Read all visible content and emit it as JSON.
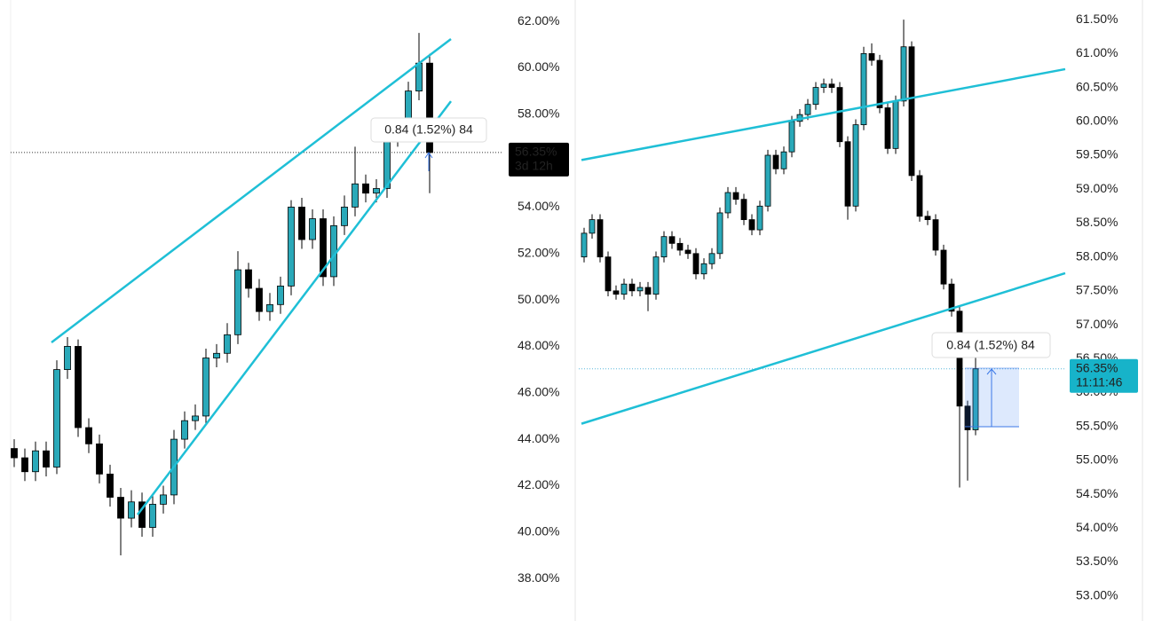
{
  "chart_data": [
    {
      "type": "candlestick",
      "open": [
        43.6,
        43.2,
        42.6,
        43.5,
        42.8,
        47.0,
        48.0,
        44.5,
        43.8,
        42.5,
        41.5,
        40.6,
        41.3,
        40.2,
        41.2,
        41.6,
        44.0,
        44.8,
        45.0,
        47.5,
        47.7,
        48.5,
        51.3,
        50.5,
        49.5,
        49.8,
        50.6,
        54.0,
        52.6,
        53.5,
        51.0,
        53.2,
        54.0,
        55.0,
        54.6,
        54.8,
        57.0,
        57.2,
        59.0,
        60.2
      ],
      "high": [
        44.0,
        43.6,
        43.9,
        43.9,
        47.4,
        48.4,
        48.3,
        44.9,
        44.2,
        42.9,
        41.9,
        41.8,
        41.7,
        41.6,
        42.0,
        44.4,
        45.2,
        45.5,
        47.9,
        48.1,
        49.0,
        52.1,
        51.6,
        50.9,
        50.3,
        51.0,
        54.3,
        54.4,
        53.9,
        53.9,
        53.6,
        54.5,
        56.6,
        55.4,
        55.2,
        57.4,
        57.6,
        59.4,
        61.5,
        60.6
      ],
      "low": [
        42.8,
        42.2,
        42.2,
        42.4,
        42.5,
        46.6,
        44.1,
        43.4,
        42.1,
        41.1,
        39.0,
        40.2,
        39.8,
        39.8,
        40.8,
        41.2,
        43.6,
        44.4,
        44.6,
        47.1,
        47.3,
        48.1,
        50.1,
        49.1,
        49.1,
        49.4,
        50.2,
        52.2,
        52.2,
        50.6,
        50.6,
        52.8,
        53.6,
        54.2,
        54.2,
        54.4,
        56.6,
        56.8,
        58.6,
        54.6
      ],
      "close": [
        43.2,
        42.6,
        43.5,
        42.8,
        47.0,
        48.0,
        44.5,
        43.8,
        42.5,
        41.5,
        40.6,
        41.3,
        40.2,
        41.2,
        41.6,
        44.0,
        44.8,
        45.0,
        47.5,
        47.7,
        48.5,
        51.3,
        50.5,
        49.5,
        49.8,
        50.6,
        54.0,
        52.6,
        53.5,
        51.0,
        53.2,
        54.0,
        55.0,
        54.6,
        54.8,
        57.0,
        57.2,
        59.0,
        60.2,
        56.35
      ],
      "up_color": "#2aa9b9",
      "down_color": "#000000",
      "ylim": [
        36.17,
        62.92
      ],
      "yticks": [
        {
          "value": 38,
          "label": "38.00%"
        },
        {
          "value": 40,
          "label": "40.00%"
        },
        {
          "value": 42,
          "label": "42.00%"
        },
        {
          "value": 44,
          "label": "44.00%"
        },
        {
          "value": 46,
          "label": "46.00%"
        },
        {
          "value": 48,
          "label": "48.00%"
        },
        {
          "value": 50,
          "label": "50.00%"
        },
        {
          "value": 52,
          "label": "52.00%"
        },
        {
          "value": 54,
          "label": "54.00%"
        },
        {
          "value": 56,
          "label": "56.00%"
        },
        {
          "value": 58,
          "label": "58.00%"
        },
        {
          "value": 60,
          "label": "60.00%"
        },
        {
          "value": 62,
          "label": "62.00%"
        }
      ],
      "trendline_color": "#1fbfd6",
      "trendlines": [
        {
          "x": [
            3.5,
            41
          ],
          "y": [
            48.17,
            61.24
          ]
        },
        {
          "x": [
            11.58,
            41
          ],
          "y": [
            40.75,
            58.56
          ]
        }
      ],
      "last_price": {
        "value": 56.35,
        "label": "56.35%",
        "countdown": "3d 12h",
        "color": "#000000",
        "line_color": "#333333"
      },
      "measure_label": "0.84 (1.52%) 84"
    },
    {
      "type": "candlestick",
      "open": [
        58.0,
        58.35,
        58.55,
        58.0,
        57.5,
        57.45,
        57.6,
        57.5,
        57.55,
        57.45,
        58.0,
        58.3,
        58.2,
        58.1,
        58.05,
        57.75,
        57.9,
        58.05,
        58.65,
        58.95,
        58.85,
        58.55,
        58.4,
        58.75,
        59.5,
        59.3,
        59.55,
        60.0,
        60.1,
        60.25,
        60.5,
        60.55,
        60.5,
        59.7,
        58.75,
        59.95,
        61.0,
        60.9,
        60.2,
        59.6,
        60.3,
        61.1,
        59.2,
        58.6,
        58.55,
        58.1,
        57.6,
        57.2,
        55.8,
        55.45
      ],
      "high": [
        58.43,
        58.63,
        58.63,
        58.08,
        57.58,
        57.68,
        57.68,
        57.63,
        57.63,
        58.08,
        58.38,
        58.38,
        58.28,
        58.18,
        58.13,
        57.98,
        58.13,
        58.73,
        59.03,
        59.03,
        58.93,
        58.63,
        58.83,
        59.58,
        59.58,
        59.63,
        60.08,
        60.18,
        60.33,
        60.58,
        60.63,
        60.63,
        60.58,
        59.78,
        60.03,
        61.1,
        61.15,
        60.98,
        60.28,
        60.38,
        61.5,
        61.18,
        59.28,
        58.68,
        58.63,
        58.18,
        57.68,
        57.28,
        55.88,
        56.6
      ],
      "low": [
        57.92,
        58.27,
        57.92,
        57.42,
        57.37,
        57.37,
        57.42,
        57.42,
        57.2,
        57.37,
        57.92,
        58.12,
        58.02,
        57.97,
        57.67,
        57.67,
        57.82,
        57.97,
        58.57,
        58.77,
        58.47,
        58.32,
        58.32,
        58.67,
        59.22,
        59.22,
        59.47,
        59.92,
        60.02,
        60.17,
        60.42,
        60.42,
        59.62,
        58.55,
        58.67,
        59.87,
        60.82,
        60.12,
        59.52,
        59.52,
        60.22,
        59.12,
        58.52,
        58.47,
        58.02,
        57.52,
        57.12,
        54.6,
        54.7,
        55.37
      ],
      "close": [
        58.35,
        58.55,
        58.0,
        57.5,
        57.45,
        57.6,
        57.5,
        57.55,
        57.45,
        58.0,
        58.3,
        58.2,
        58.1,
        58.05,
        57.75,
        57.9,
        58.05,
        58.65,
        58.95,
        58.85,
        58.55,
        58.4,
        58.75,
        59.5,
        59.3,
        59.55,
        60.0,
        60.1,
        60.25,
        60.5,
        60.55,
        60.5,
        59.7,
        58.75,
        59.95,
        61.0,
        60.9,
        60.2,
        59.6,
        60.3,
        61.1,
        59.2,
        58.6,
        58.55,
        58.1,
        57.6,
        57.2,
        55.8,
        55.45,
        56.35
      ],
      "up_color": "#2aa9b9",
      "down_color": "#000000",
      "ylim": [
        52.63,
        61.79
      ],
      "yticks": [
        {
          "value": 53,
          "label": "53.00%"
        },
        {
          "value": 53.5,
          "label": "53.50%"
        },
        {
          "value": 54,
          "label": "54.00%"
        },
        {
          "value": 54.5,
          "label": "54.50%"
        },
        {
          "value": 55,
          "label": "55.00%"
        },
        {
          "value": 55.5,
          "label": "55.50%"
        },
        {
          "value": 56,
          "label": "56.00%"
        },
        {
          "value": 56.5,
          "label": "56.50%"
        },
        {
          "value": 57,
          "label": "57.00%"
        },
        {
          "value": 57.5,
          "label": "57.50%"
        },
        {
          "value": 58,
          "label": "58.00%"
        },
        {
          "value": 58.5,
          "label": "58.50%"
        },
        {
          "value": 59,
          "label": "59.00%"
        },
        {
          "value": 59.5,
          "label": "59.50%"
        },
        {
          "value": 60,
          "label": "60.00%"
        },
        {
          "value": 60.5,
          "label": "60.50%"
        },
        {
          "value": 61,
          "label": "61.00%"
        },
        {
          "value": 61.5,
          "label": "61.50%"
        }
      ],
      "trendline_color": "#1fbfd6",
      "trendlines": [
        {
          "x": [
            -0.33,
            60.22
          ],
          "y": [
            59.43,
            60.77
          ]
        },
        {
          "x": [
            -0.33,
            60.22
          ],
          "y": [
            55.54,
            57.76
          ]
        }
      ],
      "last_price": {
        "value": 56.35,
        "label": "56.35%",
        "countdown": "11:11:46",
        "color": "#17b3c9",
        "line_color": "#5ab8dc"
      },
      "measure_label": "0.84 (1.52%) 84"
    }
  ]
}
